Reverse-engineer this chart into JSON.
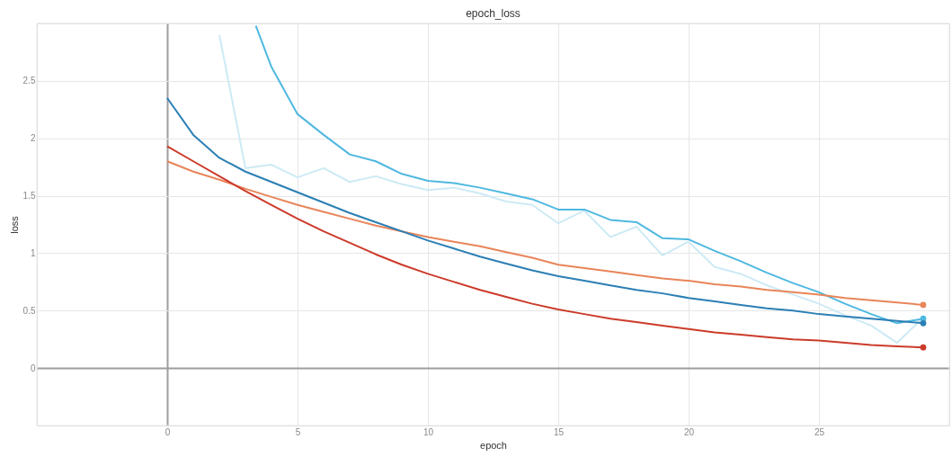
{
  "chart_data": {
    "type": "line",
    "title": "epoch_loss",
    "xlabel": "epoch",
    "ylabel": "loss",
    "xlim": [
      -5,
      30
    ],
    "xticks": [
      0,
      5,
      10,
      15,
      20,
      25
    ],
    "ylim": [
      -0.5,
      3
    ],
    "yticks": [
      0,
      0.5,
      1,
      1.5,
      2,
      2.5
    ],
    "grid": true,
    "legend": false,
    "line_style": "solid",
    "series": [
      {
        "color": "#cdeaf5",
        "x": [
          2,
          3,
          4,
          5,
          6,
          7,
          8,
          9,
          10,
          11,
          12,
          13,
          14,
          15,
          16,
          17,
          18,
          19,
          20,
          21,
          22,
          23,
          24,
          25,
          26,
          27,
          28,
          29
        ],
        "values": [
          2.9,
          1.74,
          1.77,
          1.66,
          1.74,
          1.62,
          1.67,
          1.6,
          1.55,
          1.57,
          1.52,
          1.45,
          1.42,
          1.26,
          1.37,
          1.14,
          1.23,
          0.98,
          1.1,
          0.88,
          0.82,
          0.72,
          0.64,
          0.56,
          0.46,
          0.37,
          0.22,
          0.44
        ]
      },
      {
        "color": "#4fb8e0",
        "x": [
          3.4,
          4,
          5,
          6,
          7,
          8,
          9,
          10,
          11,
          12,
          13,
          14,
          15,
          16,
          17,
          18,
          19,
          20,
          21,
          22,
          23,
          24,
          25,
          26,
          27,
          28,
          29
        ],
        "values": [
          2.98,
          2.62,
          2.21,
          2.03,
          1.86,
          1.8,
          1.69,
          1.63,
          1.61,
          1.57,
          1.52,
          1.47,
          1.38,
          1.38,
          1.29,
          1.27,
          1.13,
          1.12,
          1.02,
          0.93,
          0.83,
          0.74,
          0.66,
          0.56,
          0.47,
          0.39,
          0.43
        ]
      },
      {
        "color": "#e8855a",
        "x": [
          0,
          1,
          2,
          3,
          4,
          5,
          6,
          7,
          8,
          9,
          10,
          11,
          12,
          13,
          14,
          15,
          16,
          17,
          18,
          19,
          20,
          21,
          22,
          23,
          24,
          25,
          26,
          27,
          28,
          29
        ],
        "values": [
          1.8,
          1.71,
          1.64,
          1.56,
          1.49,
          1.42,
          1.36,
          1.3,
          1.24,
          1.19,
          1.14,
          1.1,
          1.06,
          1.01,
          0.96,
          0.9,
          0.87,
          0.84,
          0.81,
          0.78,
          0.76,
          0.73,
          0.71,
          0.68,
          0.66,
          0.64,
          0.61,
          0.59,
          0.57,
          0.55
        ]
      },
      {
        "color": "#cc3b2a",
        "x": [
          0,
          1,
          2,
          3,
          4,
          5,
          6,
          7,
          8,
          9,
          10,
          11,
          12,
          13,
          14,
          15,
          16,
          17,
          18,
          19,
          20,
          21,
          22,
          23,
          24,
          25,
          26,
          27,
          28,
          29
        ],
        "values": [
          1.93,
          1.8,
          1.67,
          1.54,
          1.42,
          1.3,
          1.19,
          1.09,
          0.99,
          0.9,
          0.82,
          0.75,
          0.68,
          0.62,
          0.56,
          0.51,
          0.47,
          0.43,
          0.4,
          0.37,
          0.34,
          0.31,
          0.29,
          0.27,
          0.25,
          0.24,
          0.22,
          0.2,
          0.19,
          0.18
        ]
      },
      {
        "color": "#2b7fb4",
        "x": [
          0,
          1,
          2,
          3,
          4,
          5,
          6,
          7,
          8,
          9,
          10,
          11,
          12,
          13,
          14,
          15,
          16,
          17,
          18,
          19,
          20,
          21,
          22,
          23,
          24,
          25,
          26,
          27,
          28,
          29
        ],
        "values": [
          2.35,
          2.03,
          1.83,
          1.71,
          1.62,
          1.53,
          1.44,
          1.35,
          1.27,
          1.19,
          1.11,
          1.04,
          0.97,
          0.91,
          0.85,
          0.8,
          0.76,
          0.72,
          0.68,
          0.65,
          0.61,
          0.58,
          0.55,
          0.52,
          0.5,
          0.47,
          0.45,
          0.43,
          0.41,
          0.39
        ]
      }
    ]
  }
}
